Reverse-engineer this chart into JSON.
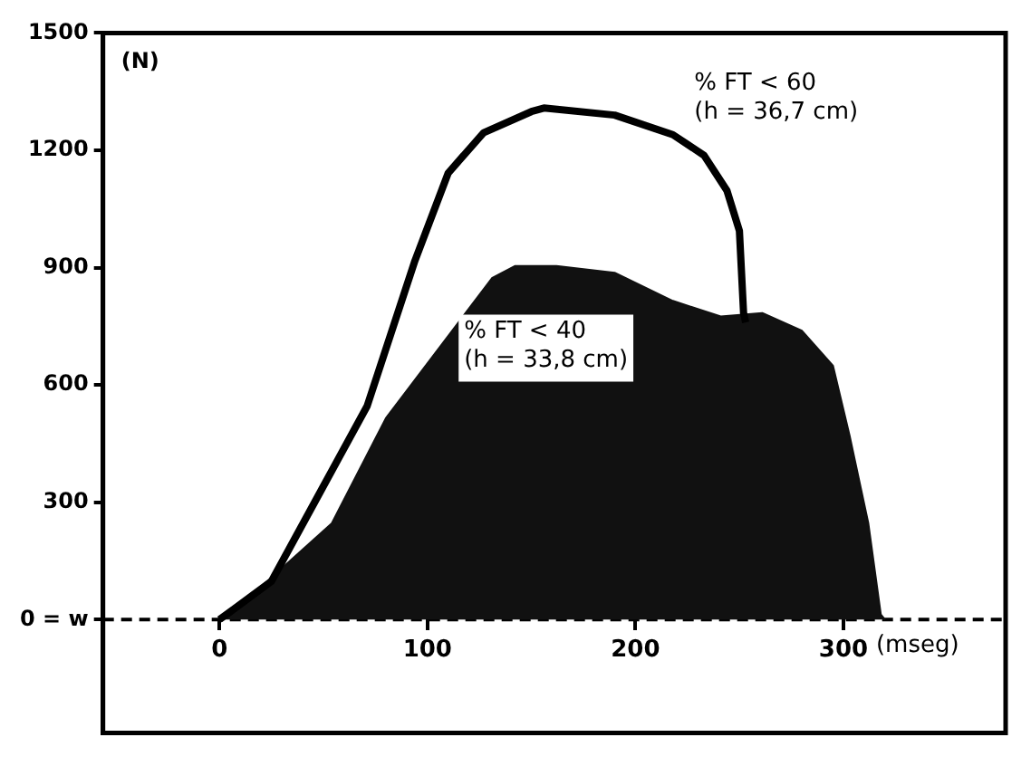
{
  "chart_data": {
    "type": "line",
    "xlabel": "(mseg)",
    "ylabel": "(N)",
    "xlim": [
      -56,
      378
    ],
    "xticks": [
      0,
      100,
      200,
      300
    ],
    "ylim": [
      -290,
      1500
    ],
    "yticks": [
      {
        "value": 0,
        "label": "0 = w"
      },
      300,
      600,
      900,
      1200,
      1500
    ],
    "legend": false,
    "marker": "none",
    "ref_lines": [
      {
        "axis": "y",
        "value": 0,
        "line_style": "dashed",
        "color": "#000000"
      }
    ],
    "series": [
      {
        "name": "% FT < 40 (h = 33,8 cm)",
        "type": "area",
        "color": "#111111",
        "x": [
          0,
          23,
          54,
          80,
          131,
          142,
          162,
          190,
          218,
          241,
          261,
          280,
          295,
          303,
          312,
          318,
          320
        ],
        "values": [
          0,
          98,
          246,
          515,
          873,
          904,
          904,
          887,
          815,
          775,
          784,
          739,
          649,
          470,
          246,
          13,
          0
        ]
      },
      {
        "name": "% FT < 60 (h = 36,7 cm)",
        "color": "#000000",
        "x": [
          0,
          25,
          48,
          71,
          94,
          110,
          127,
          150,
          156,
          190,
          218,
          233,
          244,
          250,
          252,
          253
        ],
        "values": [
          0,
          98,
          322,
          546,
          918,
          1142,
          1245,
          1299,
          1308,
          1290,
          1240,
          1187,
          1097,
          994,
          784,
          760
        ]
      }
    ]
  }
}
